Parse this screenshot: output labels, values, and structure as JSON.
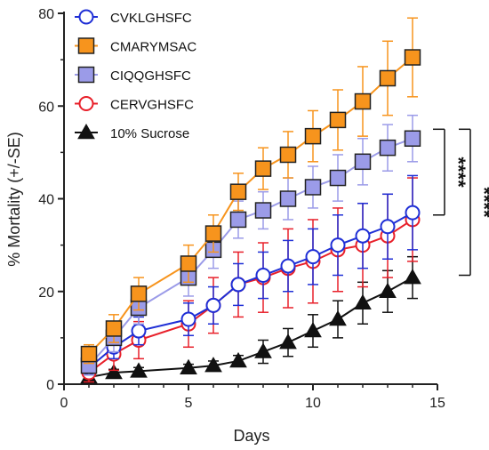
{
  "chart_data": {
    "type": "line",
    "title": "",
    "xlabel": "Days",
    "ylabel": "% Mortality (+/-SE)",
    "xlim": [
      0,
      15
    ],
    "ylim": [
      0,
      80
    ],
    "xticks": [
      0,
      5,
      10,
      15
    ],
    "yticks": [
      0,
      20,
      40,
      60,
      80
    ],
    "grid": false,
    "legend": "top-left",
    "series": [
      {
        "name": "CVKLGHSFC",
        "color": "#1f2fd6",
        "marker": "circle-open",
        "x": [
          1,
          2,
          3,
          5,
          6,
          7,
          8,
          9,
          10,
          11,
          12,
          13,
          14
        ],
        "y": [
          3.5,
          8,
          11.5,
          14,
          17,
          21.5,
          23.5,
          25.5,
          27.5,
          30,
          32,
          34,
          37
        ],
        "err": [
          1.5,
          2.5,
          3,
          3.5,
          4,
          4.5,
          5,
          5.5,
          6,
          6.5,
          7,
          7,
          8
        ]
      },
      {
        "name": "CMARYMSAC",
        "color": "#f7941d",
        "marker": "square-filled",
        "x": [
          1,
          2,
          3,
          5,
          6,
          7,
          8,
          9,
          10,
          11,
          12,
          13,
          14
        ],
        "y": [
          6.5,
          12,
          19.5,
          26,
          32.5,
          41.5,
          46.5,
          49.5,
          53.5,
          57,
          61,
          66,
          70.5
        ],
        "err": [
          2,
          3,
          3.5,
          4,
          4,
          4,
          4.5,
          5,
          5.5,
          6.5,
          7.5,
          8,
          8.5
        ]
      },
      {
        "name": "CIQQGHSFC",
        "color": "#9b9be8",
        "marker": "square-filled",
        "x": [
          1,
          2,
          3,
          5,
          6,
          7,
          8,
          9,
          10,
          11,
          12,
          13,
          14
        ],
        "y": [
          4,
          10,
          16.5,
          23,
          29,
          35.5,
          37.5,
          40,
          42.5,
          44.5,
          48,
          51,
          53
        ],
        "err": [
          2,
          3,
          3.5,
          4,
          4,
          4,
          4,
          4.5,
          4.5,
          5,
          5,
          5,
          5
        ]
      },
      {
        "name": "CERVGHSFC",
        "color": "#e8202a",
        "marker": "circle-open",
        "x": [
          1,
          2,
          3,
          5,
          6,
          7,
          8,
          9,
          10,
          11,
          12,
          13,
          14
        ],
        "y": [
          2.5,
          6.5,
          9.5,
          13,
          17,
          21.5,
          23,
          25,
          26.5,
          29,
          30,
          32,
          35.5
        ],
        "err": [
          2,
          3.5,
          4,
          5,
          6,
          7,
          7.5,
          8.5,
          9,
          9,
          9,
          9,
          9
        ]
      },
      {
        "name": "10% Sucrose",
        "color": "#111111",
        "marker": "triangle-filled",
        "x": [
          1,
          2,
          3,
          5,
          6,
          7,
          8,
          9,
          10,
          11,
          12,
          13,
          14
        ],
        "y": [
          1.5,
          2.5,
          2.8,
          3.5,
          4,
          5,
          7,
          9,
          11.5,
          14,
          17.5,
          20,
          23
        ],
        "err": [
          0.5,
          0.7,
          0.8,
          0.8,
          1,
          1.2,
          2.5,
          3,
          3.5,
          4,
          4.5,
          4.5,
          4.5
        ]
      }
    ],
    "annotations": [
      {
        "text": "****",
        "y_range": [
          36.5,
          55
        ],
        "level": "inner"
      },
      {
        "text": "****",
        "y_range": [
          23.5,
          55
        ],
        "level": "outer"
      }
    ]
  }
}
